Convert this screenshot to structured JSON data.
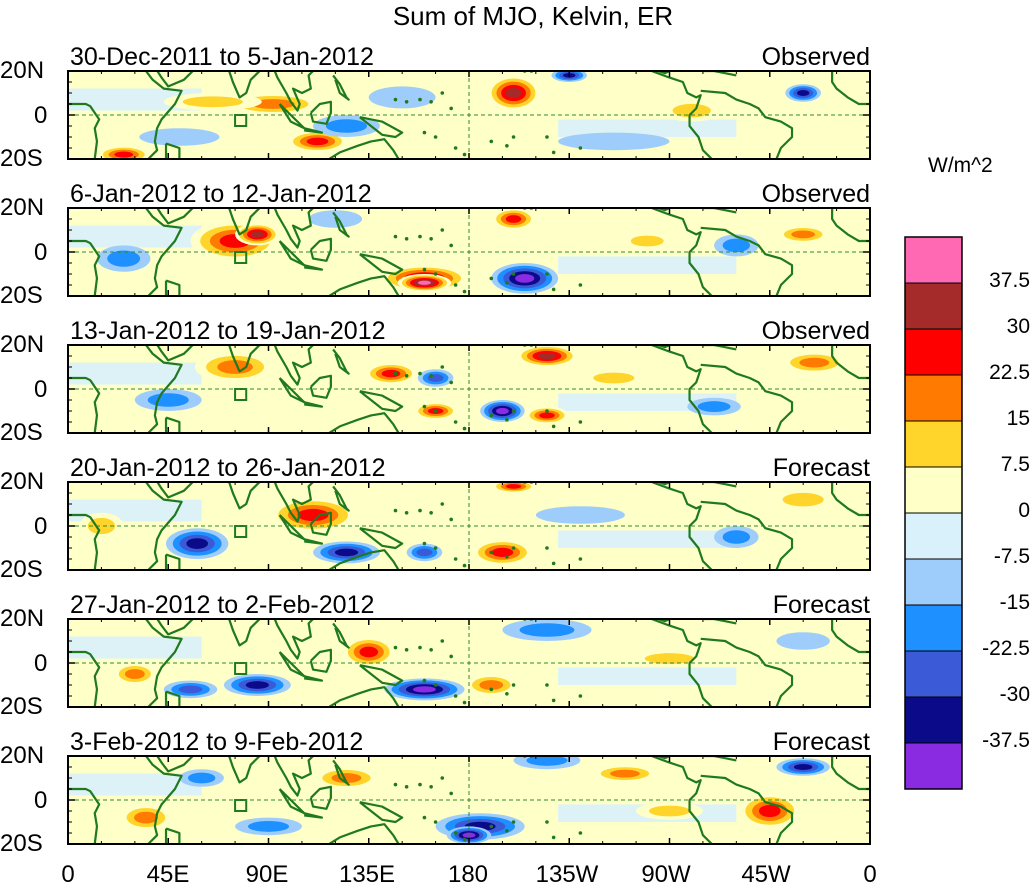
{
  "figure": {
    "title": "Sum of MJO, Kelvin, ER",
    "units": "W/m^2",
    "colors": {
      "coast": "#1f7a1f",
      "equator_line": "#2e8b2e",
      "dateline": "#2e8b2e"
    }
  },
  "panels": [
    {
      "period": "30-Dec-2011 to 5-Jan-2012",
      "status": "Observed",
      "anomalies": [
        {
          "lon": 92,
          "lat": 5,
          "rx": 22,
          "ry": 5,
          "v": 15
        },
        {
          "lon": 65,
          "lat": 6,
          "rx": 22,
          "ry": 4,
          "v": 7.5
        },
        {
          "lon": 112,
          "lat": -12,
          "rx": 14,
          "ry": 5,
          "v": 22.5
        },
        {
          "lon": 25,
          "lat": -18,
          "rx": 12,
          "ry": 4,
          "v": 22.5
        },
        {
          "lon": 200,
          "lat": 10,
          "rx": 12,
          "ry": 8,
          "v": 30
        },
        {
          "lon": 225,
          "lat": 18,
          "rx": 8,
          "ry": 3,
          "v": -30
        },
        {
          "lon": 330,
          "lat": 10,
          "rx": 8,
          "ry": 4,
          "v": -30
        },
        {
          "lon": 150,
          "lat": 8,
          "rx": 15,
          "ry": 5,
          "v": -7.5
        },
        {
          "lon": 125,
          "lat": -5,
          "rx": 15,
          "ry": 5,
          "v": -15
        },
        {
          "lon": 50,
          "lat": -10,
          "rx": 18,
          "ry": 4,
          "v": -7.5
        },
        {
          "lon": 245,
          "lat": -12,
          "rx": 25,
          "ry": 4,
          "v": -7.5
        },
        {
          "lon": 280,
          "lat": 2,
          "rx": 14,
          "ry": 5,
          "v": 7.5
        }
      ]
    },
    {
      "period": "6-Jan-2012 to 12-Jan-2012",
      "status": "Observed",
      "anomalies": [
        {
          "lon": 75,
          "lat": 5,
          "rx": 20,
          "ry": 9,
          "v": 22.5
        },
        {
          "lon": 85,
          "lat": 8,
          "rx": 10,
          "ry": 5,
          "v": 30
        },
        {
          "lon": 160,
          "lat": -12,
          "rx": 20,
          "ry": 6,
          "v": 30
        },
        {
          "lon": 160,
          "lat": -14,
          "rx": 12,
          "ry": 4,
          "v": 40
        },
        {
          "lon": 200,
          "lat": 15,
          "rx": 10,
          "ry": 5,
          "v": 22.5
        },
        {
          "lon": 205,
          "lat": -12,
          "rx": 15,
          "ry": 7,
          "v": -37.5
        },
        {
          "lon": 25,
          "lat": -3,
          "rx": 12,
          "ry": 6,
          "v": -15
        },
        {
          "lon": 300,
          "lat": 3,
          "rx": 10,
          "ry": 5,
          "v": -15
        },
        {
          "lon": 260,
          "lat": 5,
          "rx": 12,
          "ry": 4,
          "v": 7.5
        },
        {
          "lon": 330,
          "lat": 8,
          "rx": 12,
          "ry": 4,
          "v": 15
        },
        {
          "lon": 120,
          "lat": 15,
          "rx": 12,
          "ry": 4,
          "v": -7.5
        }
      ]
    },
    {
      "period": "13-Jan-2012 to 19-Jan-2012",
      "status": "Observed",
      "anomalies": [
        {
          "lon": 75,
          "lat": 10,
          "rx": 18,
          "ry": 7,
          "v": 15
        },
        {
          "lon": 215,
          "lat": 15,
          "rx": 14,
          "ry": 5,
          "v": 30
        },
        {
          "lon": 195,
          "lat": -10,
          "rx": 10,
          "ry": 5,
          "v": -37.5
        },
        {
          "lon": 215,
          "lat": -12,
          "rx": 10,
          "ry": 4,
          "v": 22.5
        },
        {
          "lon": 145,
          "lat": 7,
          "rx": 12,
          "ry": 5,
          "v": 22.5
        },
        {
          "lon": 165,
          "lat": -10,
          "rx": 10,
          "ry": 4,
          "v": 22.5
        },
        {
          "lon": 45,
          "lat": -5,
          "rx": 15,
          "ry": 5,
          "v": -15
        },
        {
          "lon": 165,
          "lat": 5,
          "rx": 8,
          "ry": 4,
          "v": -22.5
        },
        {
          "lon": 290,
          "lat": -8,
          "rx": 12,
          "ry": 4,
          "v": -15
        },
        {
          "lon": 335,
          "lat": 12,
          "rx": 15,
          "ry": 5,
          "v": 15
        },
        {
          "lon": 245,
          "lat": 5,
          "rx": 15,
          "ry": 4,
          "v": 7.5
        }
      ]
    },
    {
      "period": "20-Jan-2012 to 26-Jan-2012",
      "status": "Forecast",
      "anomalies": [
        {
          "lon": 110,
          "lat": 5,
          "rx": 20,
          "ry": 8,
          "v": 22.5
        },
        {
          "lon": 58,
          "lat": -8,
          "rx": 14,
          "ry": 7,
          "v": -30
        },
        {
          "lon": 125,
          "lat": -12,
          "rx": 15,
          "ry": 5,
          "v": -30
        },
        {
          "lon": 160,
          "lat": -12,
          "rx": 8,
          "ry": 4,
          "v": -22.5
        },
        {
          "lon": 200,
          "lat": 18,
          "rx": 10,
          "ry": 3,
          "v": 22.5
        },
        {
          "lon": 195,
          "lat": -12,
          "rx": 14,
          "ry": 6,
          "v": 22.5
        },
        {
          "lon": 300,
          "lat": -5,
          "rx": 10,
          "ry": 5,
          "v": -15
        },
        {
          "lon": 15,
          "lat": 0,
          "rx": 10,
          "ry": 6,
          "v": 7.5
        },
        {
          "lon": 230,
          "lat": 5,
          "rx": 20,
          "ry": 4,
          "v": -7.5
        },
        {
          "lon": 330,
          "lat": 12,
          "rx": 15,
          "ry": 5,
          "v": 7.5
        }
      ]
    },
    {
      "period": "27-Jan-2012 to 2-Feb-2012",
      "status": "Forecast",
      "anomalies": [
        {
          "lon": 135,
          "lat": 5,
          "rx": 12,
          "ry": 7,
          "v": 22.5
        },
        {
          "lon": 85,
          "lat": -10,
          "rx": 15,
          "ry": 5,
          "v": -30
        },
        {
          "lon": 160,
          "lat": -12,
          "rx": 18,
          "ry": 5,
          "v": -37.5
        },
        {
          "lon": 55,
          "lat": -12,
          "rx": 12,
          "ry": 4,
          "v": -22.5
        },
        {
          "lon": 190,
          "lat": -10,
          "rx": 12,
          "ry": 5,
          "v": 15
        },
        {
          "lon": 30,
          "lat": -5,
          "rx": 10,
          "ry": 5,
          "v": 15
        },
        {
          "lon": 215,
          "lat": 15,
          "rx": 20,
          "ry": 5,
          "v": -15
        },
        {
          "lon": 330,
          "lat": 10,
          "rx": 12,
          "ry": 4,
          "v": -7.5
        },
        {
          "lon": 270,
          "lat": 2,
          "rx": 18,
          "ry": 4,
          "v": 7.5
        }
      ]
    },
    {
      "period": "3-Feb-2012 to 9-Feb-2012",
      "status": "Forecast",
      "anomalies": [
        {
          "lon": 185,
          "lat": -12,
          "rx": 20,
          "ry": 6,
          "v": -30
        },
        {
          "lon": 180,
          "lat": -16,
          "rx": 10,
          "ry": 4,
          "v": -37.5
        },
        {
          "lon": 315,
          "lat": -5,
          "rx": 14,
          "ry": 8,
          "v": 22.5
        },
        {
          "lon": 330,
          "lat": 15,
          "rx": 12,
          "ry": 4,
          "v": -30
        },
        {
          "lon": 35,
          "lat": -8,
          "rx": 12,
          "ry": 6,
          "v": 15
        },
        {
          "lon": 90,
          "lat": -12,
          "rx": 15,
          "ry": 4,
          "v": -15
        },
        {
          "lon": 125,
          "lat": 10,
          "rx": 15,
          "ry": 5,
          "v": 15
        },
        {
          "lon": 215,
          "lat": 18,
          "rx": 15,
          "ry": 4,
          "v": -15
        },
        {
          "lon": 250,
          "lat": 12,
          "rx": 15,
          "ry": 4,
          "v": 15
        },
        {
          "lon": 60,
          "lat": 10,
          "rx": 10,
          "ry": 4,
          "v": -15
        },
        {
          "lon": 270,
          "lat": -5,
          "rx": 15,
          "ry": 4,
          "v": 7.5
        }
      ]
    }
  ],
  "latitude_ticks": [
    "20N",
    "0",
    "20S"
  ],
  "longitude_ticks": [
    {
      "lon": 0,
      "label": "0"
    },
    {
      "lon": 45,
      "label": "45E"
    },
    {
      "lon": 90,
      "label": "90E"
    },
    {
      "lon": 135,
      "label": "135E"
    },
    {
      "lon": 180,
      "label": "180"
    },
    {
      "lon": 225,
      "label": "135W"
    },
    {
      "lon": 270,
      "label": "90W"
    },
    {
      "lon": 315,
      "label": "45W"
    },
    {
      "lon": 360,
      "label": "0"
    }
  ],
  "colorbar": {
    "colors": [
      "#8a2be2",
      "#0b0b8a",
      "#3a5ad8",
      "#1e90ff",
      "#9ecdfb",
      "#d8f1fb",
      "#ffffc8",
      "#ffd52b",
      "#ff7a00",
      "#ff0000",
      "#a52a2a",
      "#ff69b4"
    ],
    "labels": [
      "-37.5",
      "-30",
      "-22.5",
      "-15",
      "-7.5",
      "0",
      "7.5",
      "15",
      "22.5",
      "30",
      "37.5"
    ],
    "thresholds": [
      -37.5,
      -30,
      -22.5,
      -15,
      -7.5,
      0,
      7.5,
      15,
      22.5,
      30,
      37.5
    ]
  }
}
